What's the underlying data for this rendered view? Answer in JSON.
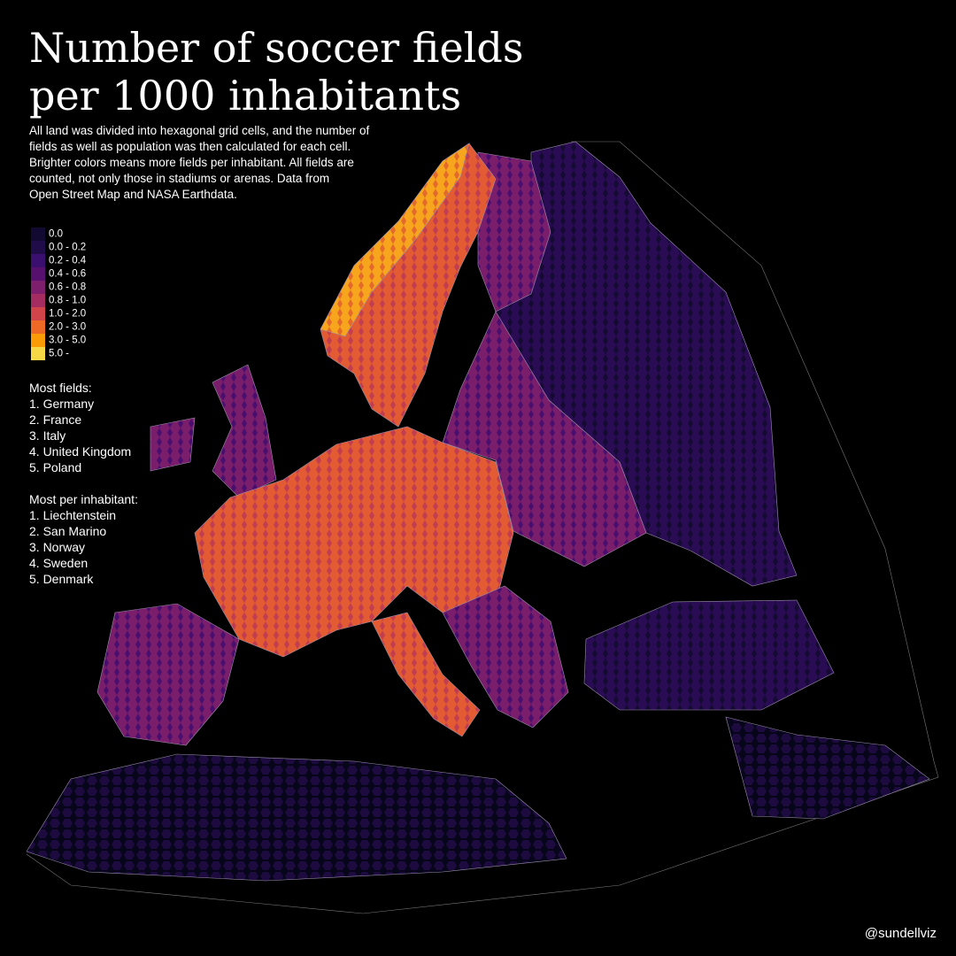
{
  "title": [
    "Number of soccer fields",
    "per 1000 inhabitants"
  ],
  "description": [
    "All land was divided into hexagonal grid cells, and the number of",
    "fields as well as population was then calculated for each cell.",
    "Brighter colors means more fields per inhabitant. All fields are",
    "counted, not only those in stadiums or arenas. Data from",
    "Open Street Map and NASA Earthdata."
  ],
  "legend": {
    "items": [
      {
        "label": "0.0",
        "color": "#120a30"
      },
      {
        "label": "0.0 - 0.2",
        "color": "#210c4a"
      },
      {
        "label": "0.2 - 0.4",
        "color": "#3b0f70"
      },
      {
        "label": "0.4 - 0.6",
        "color": "#57106e"
      },
      {
        "label": "0.6 - 0.8",
        "color": "#7d1f6c"
      },
      {
        "label": "0.8 - 1.0",
        "color": "#a52c60"
      },
      {
        "label": "1.0 - 2.0",
        "color": "#d1444a"
      },
      {
        "label": "2.0 - 3.0",
        "color": "#ed6925"
      },
      {
        "label": "3.0 - 5.0",
        "color": "#fb9b06"
      },
      {
        "label": "5.0 -",
        "color": "#f6d746"
      }
    ]
  },
  "rankings": [
    {
      "heading": "Most fields:",
      "items": [
        "1. Germany",
        "2. France",
        "3. Italy",
        "4. United Kingdom",
        "5. Poland"
      ]
    },
    {
      "heading": "Most per inhabitant:",
      "items": [
        "1. Liechtenstein",
        "2. San Marino",
        "3. Norway",
        "4. Sweden",
        "5. Denmark"
      ]
    }
  ],
  "credit": "@sundellviz"
}
